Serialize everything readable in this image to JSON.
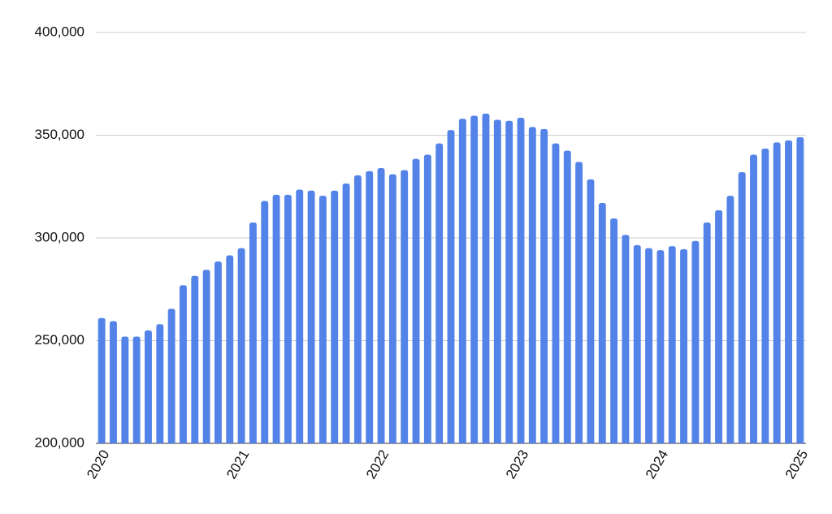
{
  "chart_data": {
    "type": "bar",
    "categories": [
      "2020",
      null,
      null,
      null,
      null,
      null,
      null,
      null,
      null,
      null,
      null,
      null,
      "2021",
      null,
      null,
      null,
      null,
      null,
      null,
      null,
      null,
      null,
      null,
      null,
      "2022",
      null,
      null,
      null,
      null,
      null,
      null,
      null,
      null,
      null,
      null,
      null,
      "2023",
      null,
      null,
      null,
      null,
      null,
      null,
      null,
      null,
      null,
      null,
      null,
      "2024",
      null,
      null,
      null,
      null,
      null,
      null,
      null,
      null,
      null,
      null,
      null,
      "2025"
    ],
    "values": [
      261000,
      259500,
      252000,
      252000,
      255000,
      258000,
      265500,
      277000,
      281500,
      284500,
      288500,
      291500,
      295000,
      307500,
      318000,
      321000,
      321000,
      323500,
      323000,
      320500,
      323000,
      326500,
      330500,
      332500,
      334000,
      331000,
      333000,
      338500,
      340500,
      346000,
      352500,
      358000,
      359500,
      360500,
      357500,
      357000,
      358500,
      354000,
      353000,
      346000,
      342500,
      337000,
      328500,
      317000,
      309500,
      301500,
      296500,
      295000,
      294000,
      296000,
      294500,
      298500,
      307500,
      313500,
      320500,
      332000,
      340500,
      343500,
      346500,
      347500,
      349000
    ],
    "color": "#5383e8",
    "ylim": [
      200000,
      400000
    ],
    "yticks": [
      {
        "value": 200000,
        "label": "200,000"
      },
      {
        "value": 250000,
        "label": "250,000"
      },
      {
        "value": 300000,
        "label": "300,000"
      },
      {
        "value": 350000,
        "label": "350,000"
      },
      {
        "value": 400000,
        "label": "400,000"
      }
    ],
    "grid": true
  }
}
